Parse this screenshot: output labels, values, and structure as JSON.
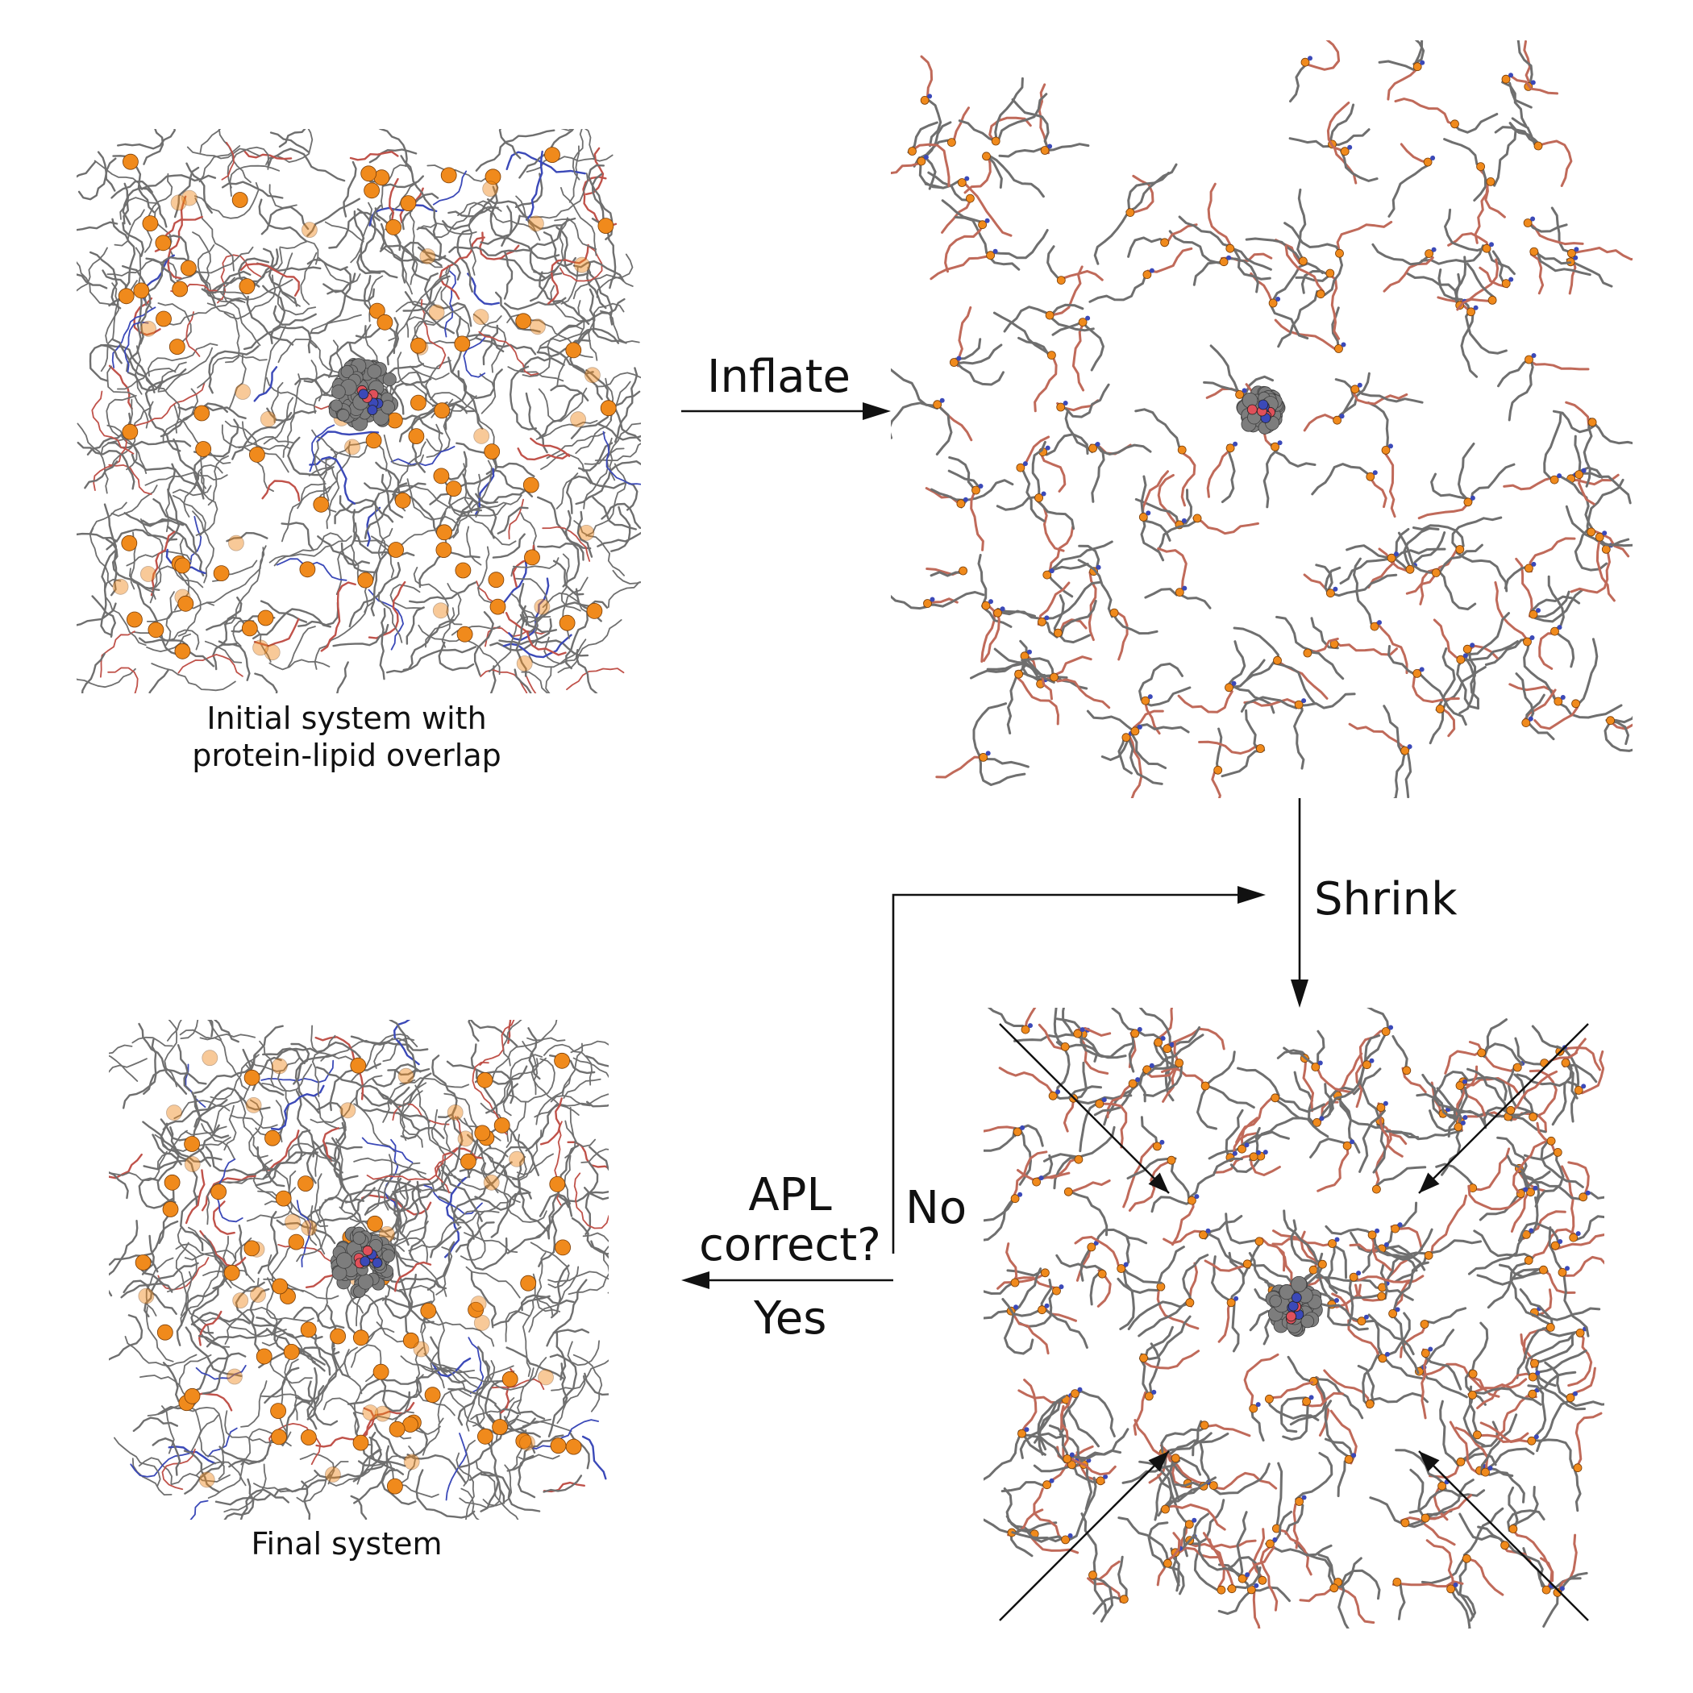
{
  "panels": {
    "initial": {
      "caption_line1": "Initial system with",
      "caption_line2": "protein-lipid overlap"
    },
    "inflated": {},
    "shrunk": {},
    "final": {
      "caption": "Final system"
    }
  },
  "labels": {
    "inflate": "Inflate",
    "shrink": "Shrink",
    "apl_line1": "APL",
    "apl_line2": "correct?",
    "no": "No",
    "yes": "Yes"
  },
  "colors": {
    "lipid_tail": "#6f6f6f",
    "phosphate": "#f08a1c",
    "glycerol": "#c0524a",
    "choline": "#3b49b8",
    "protein": "#8a8a8a",
    "arrow": "#111111"
  }
}
